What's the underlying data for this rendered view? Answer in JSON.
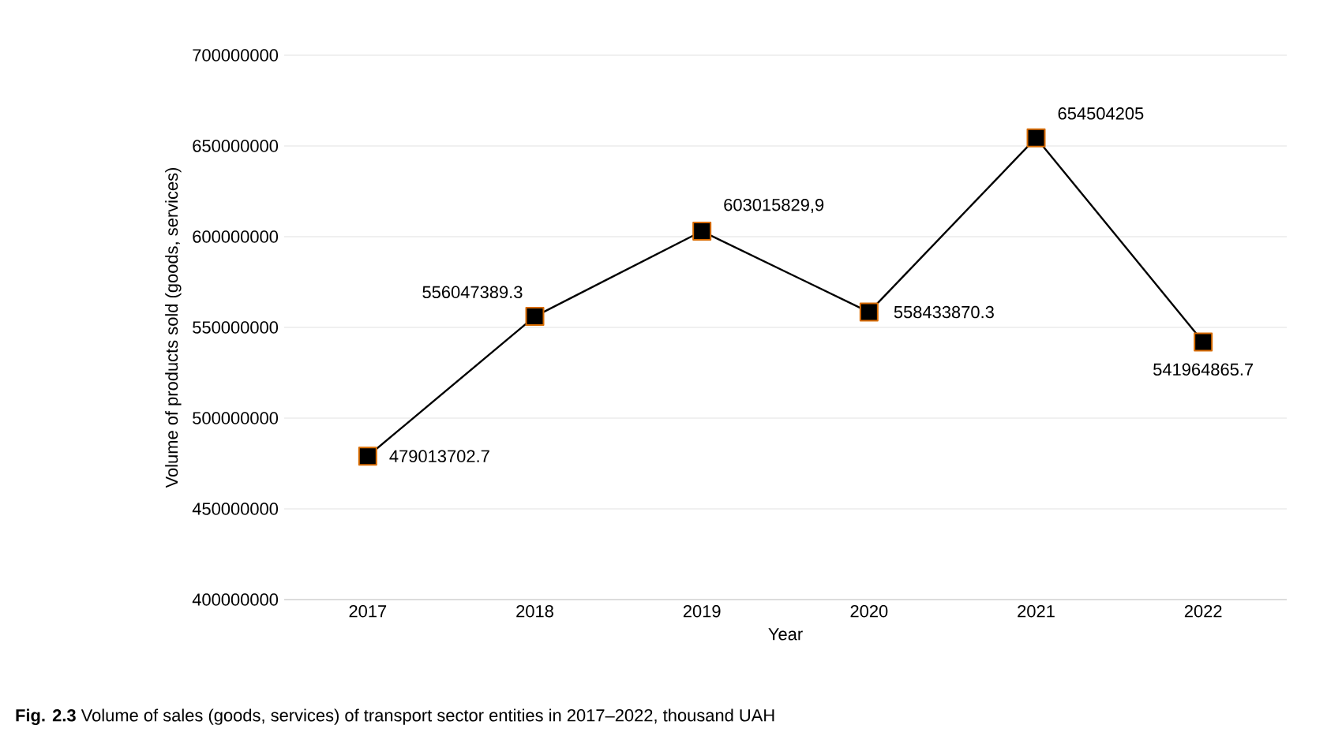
{
  "chart_data": {
    "type": "line",
    "xlabel": "Year",
    "ylabel": "Volume of products sold (goods, services)",
    "categories": [
      "2017",
      "2018",
      "2019",
      "2020",
      "2021",
      "2022"
    ],
    "series": [
      {
        "color": "#000000",
        "values": [
          479013702.7,
          556047389.3,
          603015829.9,
          558433870.3,
          654504205,
          541964865.7
        ],
        "value_labels": [
          "479013702.7",
          "556047389.3",
          "603015829,9",
          "558433870.3",
          "654504205",
          "541964865.7"
        ]
      }
    ],
    "marker": "square",
    "line_style": "solid",
    "grid": "y",
    "ylim": [
      400000000,
      700000000
    ],
    "yticks": [
      400000000,
      450000000,
      500000000,
      550000000,
      600000000,
      650000000,
      700000000
    ],
    "annotations": [
      "**Fig. 2.3** Volume of sales (goods, services) of transport sector entities in 2017–2022, thousand UAH"
    ]
  }
}
